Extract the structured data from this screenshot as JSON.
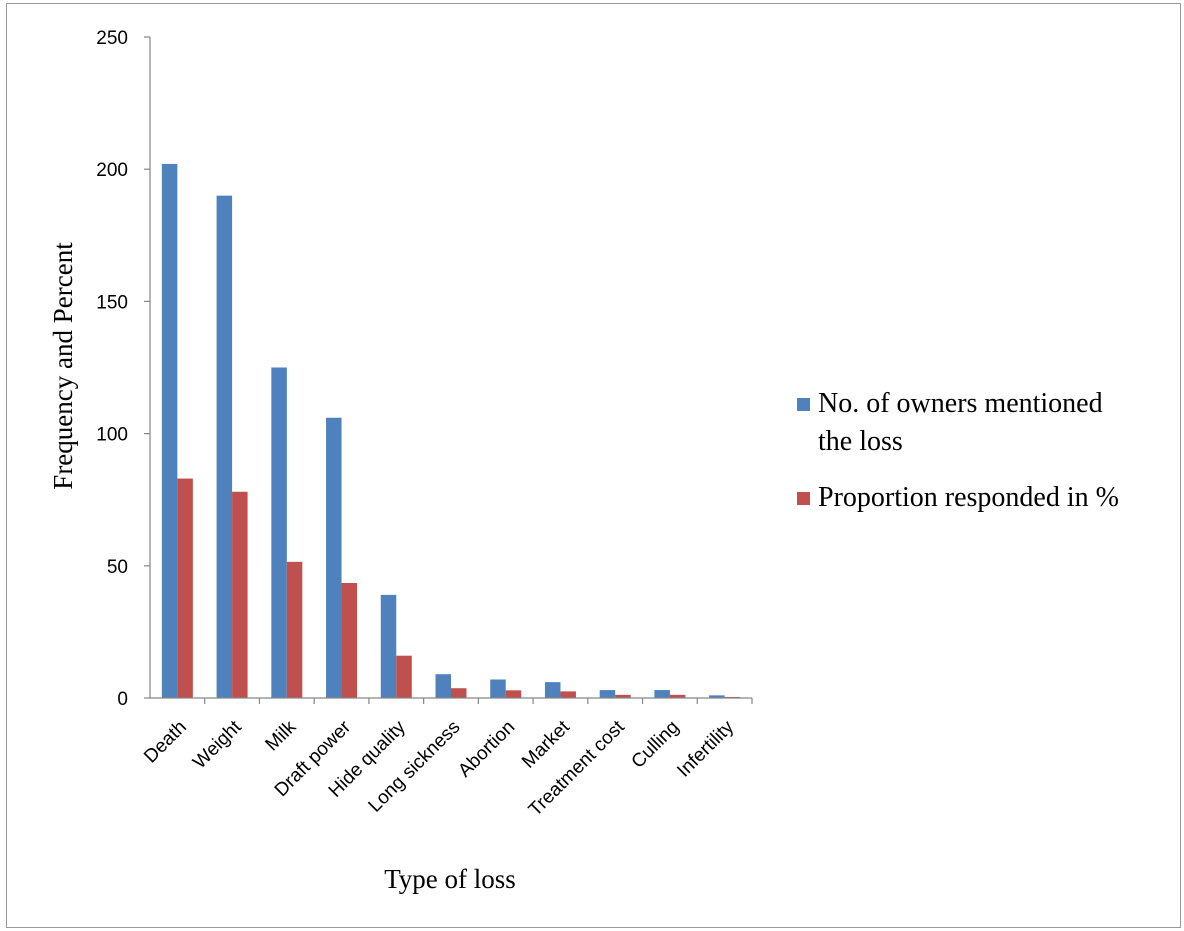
{
  "chart_data": {
    "type": "bar",
    "title": "",
    "xlabel": "Type of loss",
    "ylabel": "Frequency and Percent",
    "ylim": [
      0,
      250
    ],
    "yticks": [
      "0",
      "50",
      "100",
      "150",
      "200",
      "250"
    ],
    "grid": false,
    "legend_position": "right",
    "categories": [
      "Death",
      "Weight",
      "Milk",
      "Draft power",
      "Hide quality",
      "Long sickness",
      "Abortion",
      "Market",
      "Treatment cost",
      "Culling",
      "Infertility"
    ],
    "series": [
      {
        "name": "No. of owners mentioned the loss",
        "legend_lines": [
          "No. of owners mentioned",
          "the loss"
        ],
        "color": "#4f81bd",
        "values": [
          202,
          190,
          125,
          106,
          39,
          9,
          7,
          6,
          3,
          3,
          1
        ]
      },
      {
        "name": "Proportion responded in %",
        "legend_lines": [
          "Proportion responded in %"
        ],
        "color": "#c0504d",
        "values": [
          83,
          78,
          51.5,
          43.5,
          16,
          3.7,
          2.9,
          2.5,
          1.2,
          1.2,
          0.4
        ]
      }
    ]
  }
}
